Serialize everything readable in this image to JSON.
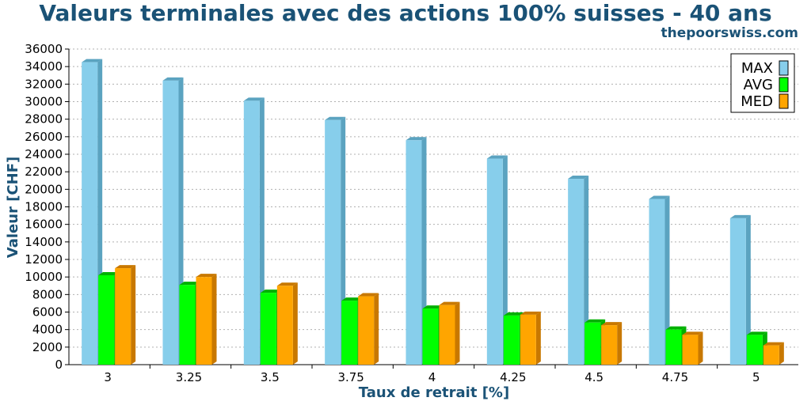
{
  "chart_data": {
    "type": "bar",
    "title": "Valeurs terminales avec des actions 100% suisses - 40 ans",
    "subtitle": "thepoorswiss.com",
    "xlabel": "Taux de retrait [%]",
    "ylabel": "Valeur [CHF]",
    "ylim": [
      0,
      36000
    ],
    "yticks": [
      0,
      2000,
      4000,
      6000,
      8000,
      10000,
      12000,
      14000,
      16000,
      18000,
      20000,
      22000,
      24000,
      26000,
      28000,
      30000,
      32000,
      34000,
      36000
    ],
    "grid": true,
    "legend_position": "top-right",
    "categories": [
      "3",
      "3.25",
      "3.5",
      "3.75",
      "4",
      "4.25",
      "4.5",
      "4.75",
      "5"
    ],
    "series": [
      {
        "name": "MAX",
        "color": "#87ceeb",
        "side_color": "#5ba3c0",
        "values": [
          34500,
          32400,
          30100,
          27900,
          25600,
          23500,
          21200,
          18900,
          16700
        ]
      },
      {
        "name": "AVG",
        "color": "#00ff00",
        "side_color": "#00b000",
        "values": [
          10200,
          9100,
          8200,
          7300,
          6400,
          5600,
          4800,
          4000,
          3400
        ]
      },
      {
        "name": "MED",
        "color": "#ffa500",
        "side_color": "#c87800",
        "values": [
          11000,
          10000,
          9000,
          7800,
          6800,
          5700,
          4500,
          3400,
          2200
        ]
      }
    ]
  }
}
